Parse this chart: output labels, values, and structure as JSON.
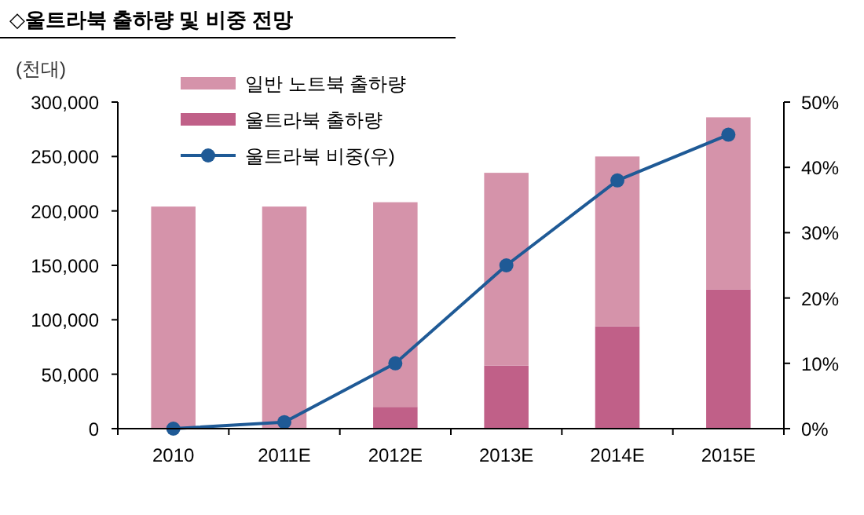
{
  "chart_data": {
    "type": "bar",
    "title": "◇울트라북 출하량 및 비중 전망",
    "ylabel": "(천대)",
    "categories": [
      "2010",
      "2011E",
      "2012E",
      "2013E",
      "2014E",
      "2015E"
    ],
    "stacked": true,
    "series": [
      {
        "name": "울트라북 출하량",
        "color": "#c06088",
        "values": [
          0,
          0,
          20000,
          58000,
          94000,
          128000
        ]
      },
      {
        "name": "일반 노트북 출하량",
        "color": "#d593aa",
        "values": [
          204000,
          204000,
          188000,
          177000,
          156000,
          158000
        ]
      },
      {
        "name": "울트라북 비중(우)",
        "type": "line",
        "axis": "y2",
        "color": "#1f5a96",
        "marker": "circle",
        "values": [
          0,
          1,
          10,
          25,
          38,
          45
        ]
      }
    ],
    "ylim": [
      0,
      300000
    ],
    "yticks": [
      {
        "value": 0,
        "label": "0"
      },
      {
        "value": 50000,
        "label": "50,000"
      },
      {
        "value": 100000,
        "label": "100,000"
      },
      {
        "value": 150000,
        "label": "150,000"
      },
      {
        "value": 200000,
        "label": "200,000"
      },
      {
        "value": 250000,
        "label": "250,000"
      },
      {
        "value": 300000,
        "label": "300,000"
      }
    ],
    "y2lim": [
      0,
      50
    ],
    "y2ticks": [
      {
        "value": 0,
        "label": "0%"
      },
      {
        "value": 10,
        "label": "10%"
      },
      {
        "value": 20,
        "label": "20%"
      },
      {
        "value": 30,
        "label": "30%"
      },
      {
        "value": 40,
        "label": "40%"
      },
      {
        "value": 50,
        "label": "50%"
      }
    ],
    "legend": "top left",
    "grid": false
  }
}
